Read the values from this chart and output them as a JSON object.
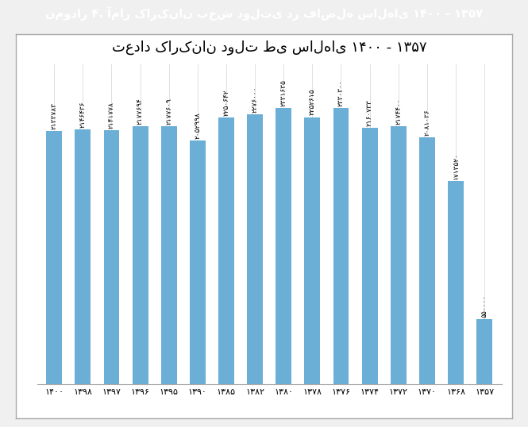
{
  "title": "تعداد کارکنان دولت طی سال‌های ۱۴۰۰ - ۱۳۵۷",
  "header": "نمودار ۴. آمار کارکنان بخش دولتی در فاصله سال‌های ۱۴۰۰ - ۱۳۵۷",
  "header_bg": "#b5913a",
  "categories": [
    "۱۴۰۰",
    "۱۳۹۸",
    "۱۳۹۷",
    "۱۳۹۶",
    "۱۳۹۵",
    "۱۳۹۰",
    "۱۳۸۵",
    "۱۳۸۲",
    "۱۳۸۰",
    "۱۳۷۸",
    "۱۳۷۶",
    "۱۳۷۴",
    "۱۳۷۲",
    "۱۳۷۰",
    "۱۳۶۸",
    "۱۳۵۷"
  ],
  "values": [
    2133783,
    2146436,
    2141778,
    2177694,
    2177609,
    2052998,
    2250642,
    2276000,
    2331635,
    2252615,
    2330300,
    2160733,
    2174400,
    2081036,
    1713520,
    550000
  ],
  "bar_labels": [
    "۲۱۳۳۷۸۳",
    "۲۱۴۶۴۳۶",
    "۲۱۴۱۷۷۸",
    "۲۱۷۷۶۹۴",
    "۲۱۷۷۶۰۹",
    "۲۰۵۲۹۹۸",
    "۲۲۵۰۶۴۲",
    "۲۲۷۶۰۰۰",
    "۲۳۳۱۶۳۵",
    "۲۲۵۲۶۱۵",
    "۲۳۳۰۳۰۰",
    "۲۱۶۰۷۳۳",
    "۲۱۷۴۴۰۰",
    "۲۰۸۱۰۳۶",
    "۱۷۱۳۵۲۰",
    "۵۵۰۰۰۰"
  ],
  "bar_color": "#6baed6",
  "chart_bg": "#ffffff",
  "outer_bg": "#f0f0f0",
  "ylim": [
    0,
    2700000
  ],
  "title_fontsize": 13,
  "label_fontsize": 6.5,
  "tick_fontsize": 8
}
